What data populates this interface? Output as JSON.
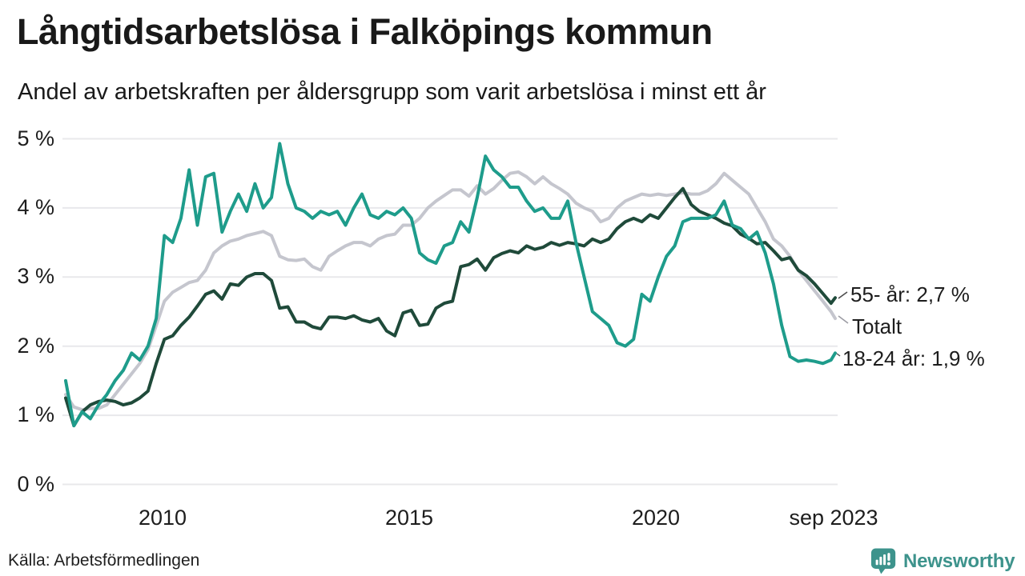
{
  "header": {
    "title": "Långtidsarbetslösa i Falköpings kommun",
    "subtitle": "Andel av arbetskraften per åldersgrupp som varit arbetslösa i minst ett år"
  },
  "source": {
    "label": "Källa: Arbetsförmedlingen"
  },
  "branding": {
    "name": "Newsworthy",
    "color": "#3d938c"
  },
  "chart_data": {
    "type": "line",
    "title": "Långtidsarbetslösa i Falköpings kommun",
    "xlabel": "",
    "ylabel": "Andel av arbetskraften (%)",
    "grid": "horizontal",
    "legend_position": "end-of-line-annotations",
    "xlim": [
      2008.083,
      2023.667
    ],
    "ylim": [
      0,
      5
    ],
    "yticks": [
      "5 %",
      "4 %",
      "3 %",
      "2 %",
      "1 %",
      "0 %"
    ],
    "ytick_values": [
      5,
      4,
      3,
      2,
      1,
      0
    ],
    "xticks": [
      "2010",
      "2015",
      "2020",
      "sep 2023"
    ],
    "xtick_values": [
      2010.04,
      2015.04,
      2020.04,
      2023.63
    ],
    "x_unit": "decimal-year, monthly data feb 2008 - sep 2023 (sampled every 2 months)",
    "x": [
      2008.083,
      2008.25,
      2008.417,
      2008.583,
      2008.75,
      2008.917,
      2009.083,
      2009.25,
      2009.417,
      2009.583,
      2009.75,
      2009.917,
      2010.083,
      2010.25,
      2010.417,
      2010.583,
      2010.75,
      2010.917,
      2011.083,
      2011.25,
      2011.417,
      2011.583,
      2011.75,
      2011.917,
      2012.083,
      2012.25,
      2012.417,
      2012.583,
      2012.75,
      2012.917,
      2013.083,
      2013.25,
      2013.417,
      2013.583,
      2013.75,
      2013.917,
      2014.083,
      2014.25,
      2014.417,
      2014.583,
      2014.75,
      2014.917,
      2015.083,
      2015.25,
      2015.417,
      2015.583,
      2015.75,
      2015.917,
      2016.083,
      2016.25,
      2016.417,
      2016.583,
      2016.75,
      2016.917,
      2017.083,
      2017.25,
      2017.417,
      2017.583,
      2017.75,
      2017.917,
      2018.083,
      2018.25,
      2018.417,
      2018.583,
      2018.75,
      2018.917,
      2019.083,
      2019.25,
      2019.417,
      2019.583,
      2019.75,
      2019.917,
      2020.083,
      2020.25,
      2020.417,
      2020.583,
      2020.75,
      2020.917,
      2021.083,
      2021.25,
      2021.417,
      2021.583,
      2021.75,
      2021.917,
      2022.083,
      2022.25,
      2022.417,
      2022.583,
      2022.75,
      2022.917,
      2023.083,
      2023.25,
      2023.417,
      2023.583,
      2023.667
    ],
    "series": [
      {
        "name": "Totalt",
        "color": "#c5c6ce",
        "end_label": "Totalt",
        "values": [
          1.3,
          1.12,
          1.08,
          1.1,
          1.1,
          1.15,
          1.3,
          1.45,
          1.6,
          1.75,
          1.95,
          2.3,
          2.65,
          2.78,
          2.85,
          2.92,
          2.95,
          3.1,
          3.35,
          3.45,
          3.52,
          3.55,
          3.6,
          3.63,
          3.66,
          3.6,
          3.3,
          3.25,
          3.24,
          3.26,
          3.15,
          3.1,
          3.3,
          3.38,
          3.45,
          3.5,
          3.5,
          3.45,
          3.55,
          3.6,
          3.62,
          3.75,
          3.75,
          3.85,
          4.0,
          4.1,
          4.18,
          4.26,
          4.26,
          4.17,
          4.32,
          4.2,
          4.28,
          4.4,
          4.5,
          4.52,
          4.45,
          4.35,
          4.45,
          4.35,
          4.28,
          4.2,
          4.07,
          4.0,
          3.95,
          3.8,
          3.85,
          4.0,
          4.1,
          4.15,
          4.2,
          4.18,
          4.2,
          4.18,
          4.2,
          4.22,
          4.2,
          4.2,
          4.25,
          4.35,
          4.5,
          4.4,
          4.3,
          4.2,
          4.0,
          3.8,
          3.55,
          3.45,
          3.3,
          3.1,
          2.95,
          2.8,
          2.65,
          2.5,
          2.4
        ]
      },
      {
        "name": "55- år",
        "color": "#1f4a3a",
        "end_label": "55- år: 2,7 %",
        "end_value": 2.7,
        "values": [
          1.25,
          0.85,
          1.05,
          1.15,
          1.2,
          1.22,
          1.2,
          1.15,
          1.18,
          1.25,
          1.35,
          1.75,
          2.1,
          2.15,
          2.3,
          2.42,
          2.58,
          2.75,
          2.8,
          2.68,
          2.9,
          2.88,
          3.0,
          3.05,
          3.05,
          2.95,
          2.55,
          2.57,
          2.35,
          2.35,
          2.28,
          2.25,
          2.42,
          2.42,
          2.4,
          2.44,
          2.38,
          2.35,
          2.4,
          2.22,
          2.15,
          2.48,
          2.52,
          2.3,
          2.32,
          2.55,
          2.62,
          2.65,
          3.15,
          3.18,
          3.26,
          3.1,
          3.28,
          3.34,
          3.38,
          3.35,
          3.45,
          3.4,
          3.43,
          3.5,
          3.46,
          3.5,
          3.48,
          3.45,
          3.55,
          3.5,
          3.55,
          3.7,
          3.8,
          3.85,
          3.8,
          3.9,
          3.85,
          4.0,
          4.15,
          4.28,
          4.05,
          3.95,
          3.9,
          3.85,
          3.78,
          3.74,
          3.62,
          3.56,
          3.48,
          3.5,
          3.38,
          3.25,
          3.28,
          3.1,
          3.02,
          2.9,
          2.76,
          2.62,
          2.7
        ]
      },
      {
        "name": "18-24 år",
        "color": "#1e9c8b",
        "end_label": "18-24 år: 1,9 %",
        "end_value": 1.9,
        "values": [
          1.5,
          0.85,
          1.05,
          0.95,
          1.15,
          1.3,
          1.5,
          1.65,
          1.9,
          1.8,
          2.0,
          2.4,
          3.6,
          3.5,
          3.85,
          4.55,
          3.75,
          4.45,
          4.5,
          3.65,
          3.95,
          4.2,
          3.95,
          4.35,
          4.0,
          4.15,
          4.93,
          4.35,
          4.0,
          3.95,
          3.85,
          3.95,
          3.9,
          3.95,
          3.75,
          4.0,
          4.2,
          3.9,
          3.85,
          3.95,
          3.9,
          4.0,
          3.85,
          3.35,
          3.25,
          3.2,
          3.45,
          3.5,
          3.8,
          3.65,
          4.15,
          4.75,
          4.55,
          4.45,
          4.3,
          4.3,
          4.1,
          3.95,
          4.0,
          3.85,
          3.85,
          4.1,
          3.5,
          3.0,
          2.5,
          2.4,
          2.3,
          2.05,
          2.0,
          2.1,
          2.75,
          2.65,
          3.0,
          3.3,
          3.45,
          3.8,
          3.85,
          3.85,
          3.85,
          3.9,
          4.1,
          3.75,
          3.7,
          3.55,
          3.65,
          3.35,
          2.9,
          2.3,
          1.85,
          1.78,
          1.8,
          1.78,
          1.75,
          1.8,
          1.9
        ]
      }
    ]
  }
}
